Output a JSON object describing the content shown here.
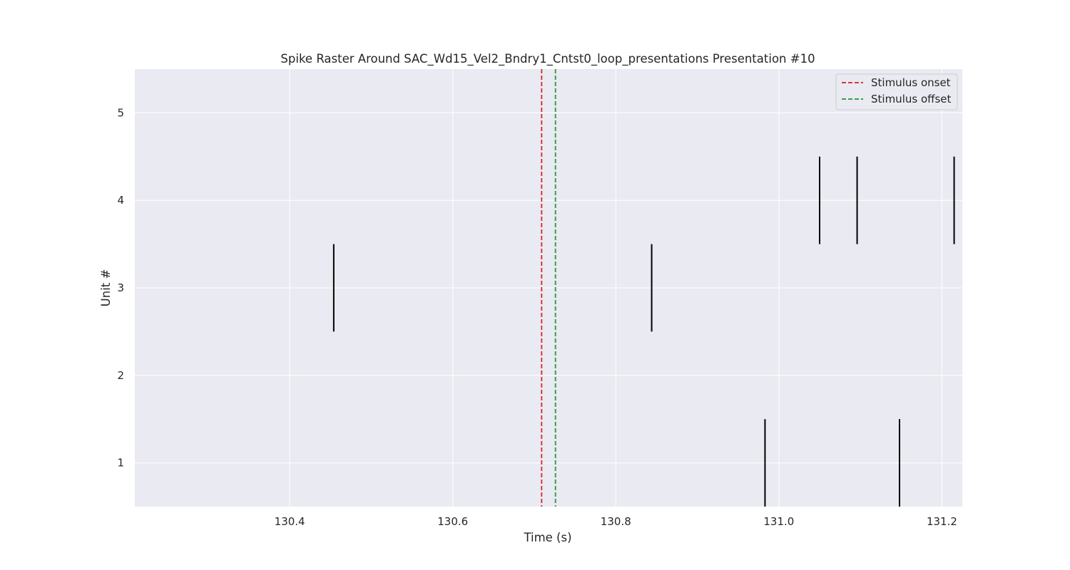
{
  "chart_data": {
    "type": "scatter",
    "marker": "vertical-line",
    "title": "Spike Raster Around SAC_Wd15_Vel2_Bndry1_Cntst0_loop_presentations Presentation #10",
    "xlabel": "Time (s)",
    "ylabel": "Unit #",
    "xlim": [
      130.21,
      131.225
    ],
    "ylim": [
      0.5,
      5.5
    ],
    "xticks": [
      130.4,
      130.6,
      130.8,
      131.0,
      131.2
    ],
    "xtick_labels": [
      "130.4",
      "130.6",
      "130.8",
      "131.0",
      "131.2"
    ],
    "yticks": [
      1,
      2,
      3,
      4,
      5
    ],
    "ytick_labels": [
      "1",
      "2",
      "3",
      "4",
      "5"
    ],
    "grid": true,
    "legend_position": "top-right",
    "spikes": [
      {
        "unit": 1,
        "times": [
          130.983,
          131.148
        ]
      },
      {
        "unit": 2,
        "times": []
      },
      {
        "unit": 3,
        "times": [
          130.454,
          130.844
        ]
      },
      {
        "unit": 4,
        "times": [
          131.05,
          131.096,
          131.215
        ]
      },
      {
        "unit": 5,
        "times": []
      }
    ],
    "vlines": [
      {
        "name": "Stimulus onset",
        "x": 130.709,
        "color": "#d9373e"
      },
      {
        "name": "Stimulus offset",
        "x": 130.726,
        "color": "#3b9e4a"
      }
    ],
    "colors": {
      "background": "#eaeaf2",
      "grid": "#ffffff",
      "spike": "#000000",
      "text": "#262626"
    }
  }
}
